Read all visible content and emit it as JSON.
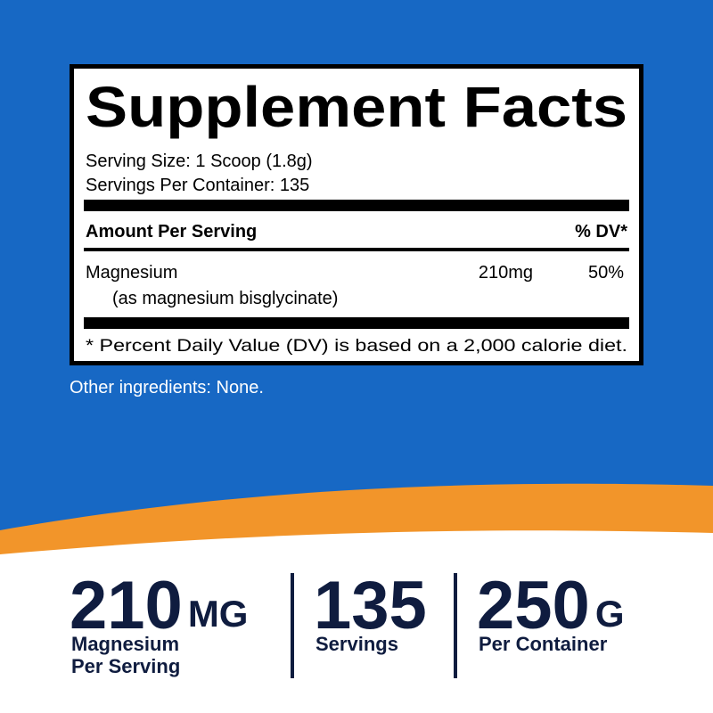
{
  "label": {
    "title": "Supplement Facts",
    "serving_size": "Serving Size: 1 Scoop (1.8g)",
    "servings_per_container": "Servings Per Container: 135",
    "header": {
      "amount": "Amount Per Serving",
      "dv": "% DV*"
    },
    "rows": [
      {
        "name": "Magnesium",
        "source": "(as magnesium bisglycinate)",
        "amount": "210mg",
        "dv": "50%"
      }
    ],
    "footnote": "* Percent Daily Value (DV) is based on a 2,000 calorie diet."
  },
  "other_ingredients": "Other ingredients: None.",
  "highlights": [
    {
      "number": "210",
      "unit": "MG",
      "caption": [
        "Magnesium",
        "Per Serving"
      ]
    },
    {
      "number": "135",
      "caption": [
        "Servings"
      ]
    },
    {
      "number": "250",
      "unit": "G",
      "caption": [
        "Per Container"
      ]
    }
  ]
}
